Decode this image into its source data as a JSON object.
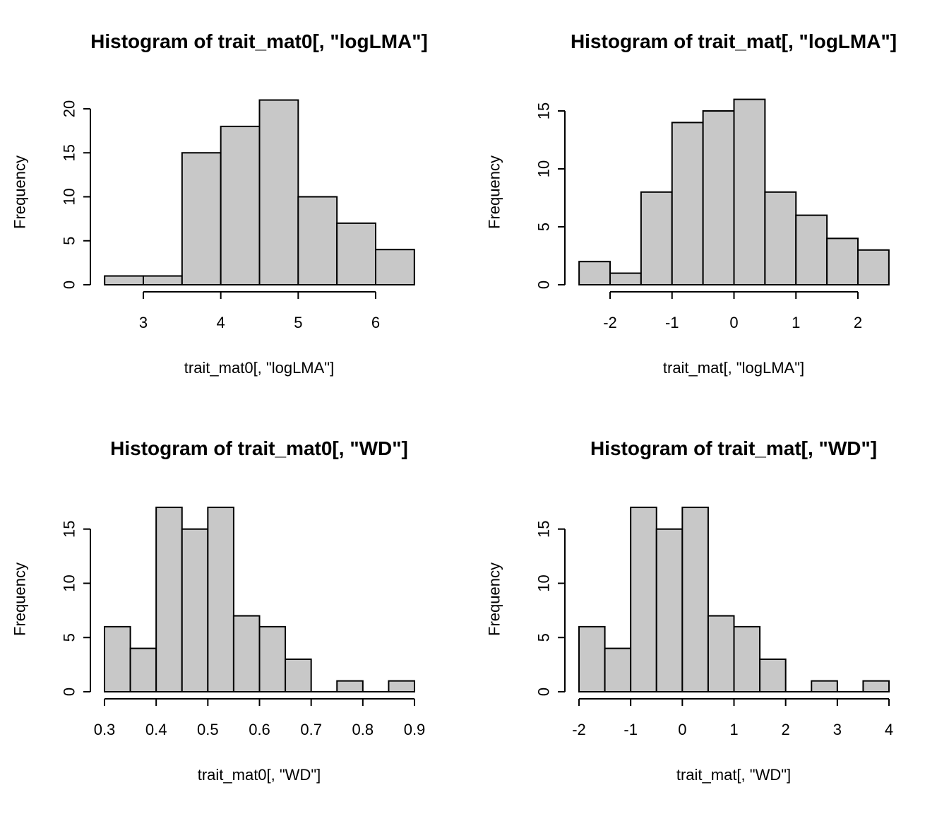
{
  "chart_data": [
    {
      "type": "bar",
      "title": "Histogram of trait_mat0[, \"logLMA\"]",
      "xlabel": "trait_mat0[, \"logLMA\"]",
      "ylabel": "Frequency",
      "bins": [
        [
          2.5,
          3.0
        ],
        [
          3.0,
          3.5
        ],
        [
          3.5,
          4.0
        ],
        [
          4.0,
          4.5
        ],
        [
          4.5,
          5.0
        ],
        [
          5.0,
          5.5
        ],
        [
          5.5,
          6.0
        ],
        [
          6.0,
          6.5
        ]
      ],
      "values": [
        1,
        1,
        15,
        18,
        21,
        10,
        7,
        4
      ],
      "xticks": [
        3,
        4,
        5,
        6
      ],
      "xtick_labels": [
        "3",
        "4",
        "5",
        "6"
      ],
      "yticks": [
        0,
        5,
        10,
        15,
        20
      ],
      "ytick_labels": [
        "0",
        "5",
        "10",
        "15",
        "20"
      ]
    },
    {
      "type": "bar",
      "title": "Histogram of trait_mat[, \"logLMA\"]",
      "xlabel": "trait_mat[, \"logLMA\"]",
      "ylabel": "Frequency",
      "bins": [
        [
          -2.5,
          -2.0
        ],
        [
          -2.0,
          -1.5
        ],
        [
          -1.5,
          -1.0
        ],
        [
          -1.0,
          -0.5
        ],
        [
          -0.5,
          0.0
        ],
        [
          0.0,
          0.5
        ],
        [
          0.5,
          1.0
        ],
        [
          1.0,
          1.5
        ],
        [
          1.5,
          2.0
        ],
        [
          2.0,
          2.5
        ]
      ],
      "values": [
        2,
        1,
        8,
        14,
        15,
        16,
        8,
        6,
        4,
        3
      ],
      "xticks": [
        -2,
        -1,
        0,
        1,
        2
      ],
      "xtick_labels": [
        "-2",
        "-1",
        "0",
        "1",
        "2"
      ],
      "yticks": [
        0,
        5,
        10,
        15
      ],
      "ytick_labels": [
        "0",
        "5",
        "10",
        "15"
      ]
    },
    {
      "type": "bar",
      "title": "Histogram of trait_mat0[, \"WD\"]",
      "xlabel": "trait_mat0[, \"WD\"]",
      "ylabel": "Frequency",
      "bins": [
        [
          0.3,
          0.35
        ],
        [
          0.35,
          0.4
        ],
        [
          0.4,
          0.45
        ],
        [
          0.45,
          0.5
        ],
        [
          0.5,
          0.55
        ],
        [
          0.55,
          0.6
        ],
        [
          0.6,
          0.65
        ],
        [
          0.65,
          0.7
        ],
        [
          0.7,
          0.75
        ],
        [
          0.75,
          0.8
        ],
        [
          0.8,
          0.85
        ],
        [
          0.85,
          0.9
        ]
      ],
      "values": [
        6,
        4,
        17,
        15,
        17,
        7,
        6,
        3,
        0,
        1,
        0,
        1
      ],
      "xticks": [
        0.3,
        0.4,
        0.5,
        0.6,
        0.7,
        0.8,
        0.9
      ],
      "xtick_labels": [
        "0.3",
        "0.4",
        "0.5",
        "0.6",
        "0.7",
        "0.8",
        "0.9"
      ],
      "yticks": [
        0,
        5,
        10,
        15
      ],
      "ytick_labels": [
        "0",
        "5",
        "10",
        "15"
      ]
    },
    {
      "type": "bar",
      "title": "Histogram of trait_mat[, \"WD\"]",
      "xlabel": "trait_mat[, \"WD\"]",
      "ylabel": "Frequency",
      "bins": [
        [
          -2.0,
          -1.5
        ],
        [
          -1.5,
          -1.0
        ],
        [
          -1.0,
          -0.5
        ],
        [
          -0.5,
          0.0
        ],
        [
          0.0,
          0.5
        ],
        [
          0.5,
          1.0
        ],
        [
          1.0,
          1.5
        ],
        [
          1.5,
          2.0
        ],
        [
          2.0,
          2.5
        ],
        [
          2.5,
          3.0
        ],
        [
          3.0,
          3.5
        ],
        [
          3.5,
          4.0
        ]
      ],
      "values": [
        6,
        4,
        17,
        15,
        17,
        7,
        6,
        3,
        0,
        1,
        0,
        1
      ],
      "xticks": [
        -2,
        -1,
        0,
        1,
        2,
        3,
        4
      ],
      "xtick_labels": [
        "-2",
        "-1",
        "0",
        "1",
        "2",
        "3",
        "4"
      ],
      "yticks": [
        0,
        5,
        10,
        15
      ],
      "ytick_labels": [
        "0",
        "5",
        "10",
        "15"
      ]
    }
  ]
}
